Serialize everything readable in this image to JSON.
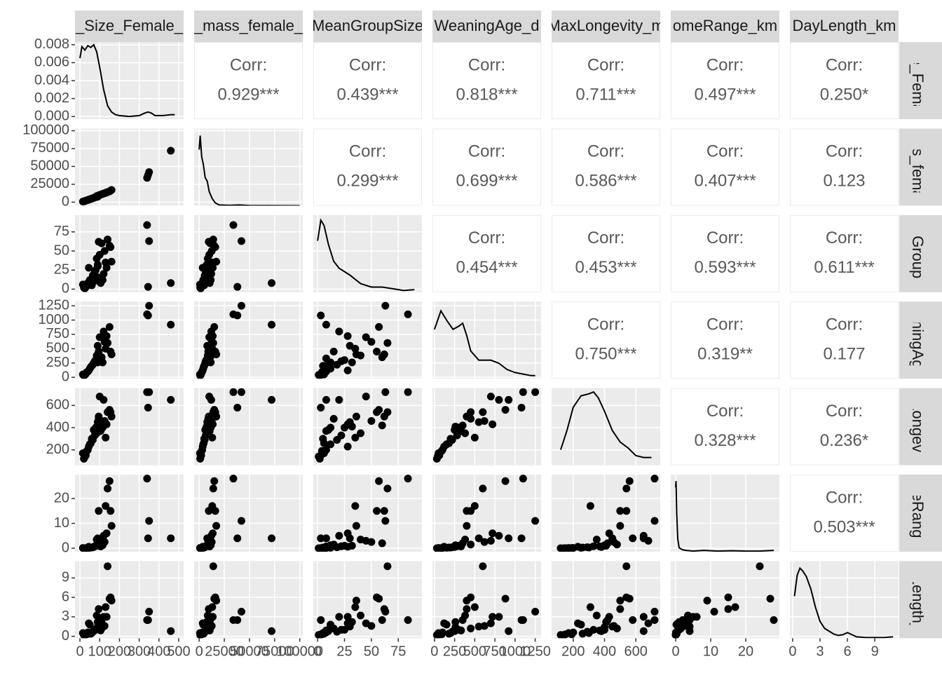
{
  "chart_data": {
    "type": "scatter-matrix",
    "corr_label": "Corr:",
    "variables": [
      {
        "strip": "_Size_Female_",
        "row_strip": "ize_Femal",
        "lim": [
          -25,
          525
        ],
        "ticks": [
          0,
          100,
          200,
          300,
          400,
          500
        ],
        "values": [
          340,
          350,
          345,
          460,
          150,
          140,
          130,
          155,
          160,
          120,
          100,
          90,
          80,
          70,
          60,
          50,
          40,
          30,
          20,
          110,
          95,
          85,
          75,
          65,
          55,
          45,
          35,
          125,
          105,
          115,
          25,
          15,
          135,
          95,
          90
        ]
      },
      {
        "strip": "_mass_female_",
        "row_strip": "ass_femal",
        "lim": [
          -5000,
          103000
        ],
        "ticks": [
          0,
          25000,
          50000,
          75000,
          100000
        ],
        "values": [
          34000,
          42000,
          38000,
          72000,
          15000,
          14000,
          13000,
          16000,
          17000,
          12000,
          10000,
          8000,
          7000,
          6000,
          5000,
          4000,
          3000,
          2000,
          1000,
          11000,
          9000,
          8500,
          6500,
          5500,
          4500,
          3500,
          2500,
          12500,
          10500,
          11500,
          1500,
          800,
          13500,
          9500,
          7500
        ]
      },
      {
        "strip": "MeanGroupSize",
        "row_strip": "anGroupS",
        "lim": [
          -4,
          97
        ],
        "ticks": [
          0,
          25,
          50,
          75
        ],
        "values": [
          84,
          63,
          3,
          8,
          57,
          65,
          35,
          55,
          36,
          20,
          45,
          30,
          25,
          10,
          5,
          12,
          8,
          3,
          2,
          60,
          15,
          40,
          22,
          18,
          6,
          28,
          4,
          50,
          8,
          12,
          1,
          6,
          28,
          62,
          32
        ]
      },
      {
        "strip": "WeaningAge_d",
        "row_strip": "eaningAge",
        "lim": [
          -25,
          1323
        ],
        "ticks": [
          0,
          250,
          500,
          750,
          1000,
          1250
        ],
        "values": [
          1100,
          1250,
          1080,
          920,
          880,
          600,
          500,
          450,
          400,
          800,
          700,
          550,
          300,
          250,
          200,
          150,
          100,
          60,
          30,
          350,
          450,
          380,
          280,
          220,
          180,
          120,
          90,
          620,
          330,
          260,
          40,
          50,
          720,
          400,
          260
        ]
      },
      {
        "strip": "MaxLongevity_m",
        "row_strip": "axLongevity",
        "lim": [
          62,
          756
        ],
        "ticks": [
          200,
          400,
          600
        ],
        "values": [
          720,
          720,
          580,
          650,
          560,
          540,
          310,
          540,
          500,
          650,
          680,
          450,
          400,
          380,
          300,
          250,
          200,
          150,
          120,
          420,
          480,
          350,
          330,
          290,
          260,
          230,
          190,
          460,
          370,
          400,
          140,
          170,
          430,
          500,
          410
        ]
      },
      {
        "strip": "omeRange_km",
        "row_strip": "omeRange_",
        "lim": [
          -1.4,
          29.6
        ],
        "ticks": [
          0,
          10,
          20
        ],
        "values": [
          28,
          11,
          4,
          4,
          27,
          24,
          17,
          15,
          9,
          5,
          3,
          4,
          1,
          0.5,
          0.3,
          0.2,
          0.1,
          0.05,
          0.02,
          2,
          1.5,
          3.5,
          0.8,
          0.4,
          0.3,
          0.6,
          0.1,
          2.5,
          0.7,
          1.2,
          0.02,
          0.1,
          6,
          15,
          1
        ]
      },
      {
        "strip": "DayLength_km",
        "row_strip": "ayLength_k",
        "lim": [
          -0.3,
          11.6
        ],
        "ticks": [
          0,
          3,
          6,
          9
        ],
        "values": [
          2.5,
          3.8,
          2.5,
          0.8,
          5.8,
          10.8,
          4.5,
          6,
          5.5,
          3,
          2,
          1.5,
          1,
          0.8,
          0.5,
          1.8,
          0.6,
          0.3,
          0.2,
          2.5,
          1.2,
          3.2,
          1,
          0.7,
          0.4,
          2,
          0.3,
          1.6,
          0.9,
          1.4,
          0.2,
          0.5,
          3,
          4.2,
          2.2
        ]
      }
    ],
    "diag_yticks": [
      {
        "value": 0,
        "label": "0.000"
      },
      {
        "value": 0.002,
        "label": "0.002"
      },
      {
        "value": 0.004,
        "label": "0.004"
      },
      {
        "value": 0.006,
        "label": "0.006"
      },
      {
        "value": 0.008,
        "label": "0.008"
      }
    ],
    "densities": [
      {
        "ylim": [
          -0.0003,
          0.0083
        ],
        "x": [
          0,
          10,
          25,
          40,
          55,
          70,
          85,
          100,
          120,
          140,
          160,
          180,
          200,
          250,
          300,
          330,
          345,
          360,
          380,
          420,
          460,
          480
        ],
        "y": [
          0.0065,
          0.0078,
          0.0074,
          0.0079,
          0.0077,
          0.008,
          0.0072,
          0.0055,
          0.003,
          0.0012,
          0.0005,
          0.0002,
          0.0001,
          0,
          0.0001,
          0.0004,
          0.0005,
          0.0004,
          0.0001,
          0.0001,
          0.0002,
          0.0002
        ]
      },
      {
        "ylim": [
          0,
          0.00011
        ],
        "x": [
          0,
          1000,
          2500,
          4000,
          6000,
          8000,
          10000,
          13000,
          16000,
          20000,
          30000,
          40000,
          50000,
          70000,
          90000,
          100000
        ],
        "y": [
          8e-05,
          0.0001,
          7e-05,
          6e-05,
          4e-05,
          3.5e-05,
          2e-05,
          1e-05,
          4e-06,
          1e-06,
          5e-07,
          1e-06,
          3e-07,
          2e-07,
          0,
          0
        ]
      },
      {
        "ylim": [
          0,
          0.045
        ],
        "x": [
          0,
          3,
          6,
          10,
          15,
          20,
          30,
          40,
          50,
          60,
          70,
          80,
          90
        ],
        "y": [
          0.03,
          0.042,
          0.039,
          0.028,
          0.018,
          0.014,
          0.01,
          0.005,
          0.003,
          0.003,
          0.002,
          0.001,
          0.0015
        ]
      },
      {
        "ylim": [
          0,
          0.0025
        ],
        "x": [
          0,
          80,
          150,
          230,
          300,
          350,
          400,
          450,
          550,
          700,
          800,
          900,
          1000,
          1100,
          1200,
          1250
        ],
        "y": [
          0.0016,
          0.0022,
          0.0019,
          0.0016,
          0.0017,
          0.0018,
          0.0014,
          0.0009,
          0.0006,
          0.0006,
          0.0005,
          0.0003,
          0.0002,
          0.00015,
          0.0001,
          0.0001
        ]
      },
      {
        "ylim": [
          0,
          0.004
        ],
        "x": [
          120,
          160,
          200,
          250,
          300,
          330,
          360,
          400,
          450,
          500,
          550,
          600,
          650,
          700
        ],
        "y": [
          0.0008,
          0.0018,
          0.003,
          0.0036,
          0.0037,
          0.0038,
          0.0035,
          0.0028,
          0.0018,
          0.0012,
          0.0009,
          0.0005,
          0.0004,
          0.0004
        ]
      },
      {
        "ylim": [
          0,
          1.2
        ],
        "x": [
          0,
          0.1,
          0.3,
          0.6,
          1,
          2,
          3,
          5,
          8,
          12,
          16,
          20,
          24,
          28
        ],
        "y": [
          1.0,
          1.1,
          0.6,
          0.2,
          0.06,
          0.03,
          0.02,
          0.01,
          0.02,
          0.01,
          0.015,
          0.01,
          0.01,
          0.02
        ]
      },
      {
        "ylim": [
          0,
          0.55
        ],
        "x": [
          0.2,
          0.5,
          0.8,
          1.1,
          1.5,
          2,
          2.5,
          3,
          3.5,
          4,
          4.5,
          5,
          5.5,
          6,
          6.5,
          7,
          8,
          9,
          10,
          11
        ],
        "y": [
          0.3,
          0.45,
          0.5,
          0.48,
          0.44,
          0.35,
          0.22,
          0.12,
          0.07,
          0.05,
          0.03,
          0.02,
          0.025,
          0.04,
          0.025,
          0.01,
          0.005,
          0.005,
          0.005,
          0.01
        ]
      }
    ],
    "correlations": [
      [
        {
          "value": 0.929,
          "label": "0.929***"
        },
        {
          "value": 0.439,
          "label": "0.439***"
        },
        {
          "value": 0.818,
          "label": "0.818***"
        },
        {
          "value": 0.711,
          "label": "0.711***"
        },
        {
          "value": 0.497,
          "label": "0.497***"
        },
        {
          "value": 0.25,
          "label": "0.250*"
        }
      ],
      [
        {
          "value": 0.299,
          "label": "0.299***"
        },
        {
          "value": 0.699,
          "label": "0.699***"
        },
        {
          "value": 0.586,
          "label": "0.586***"
        },
        {
          "value": 0.407,
          "label": "0.407***"
        },
        {
          "value": 0.123,
          "label": "0.123"
        }
      ],
      [
        {
          "value": 0.454,
          "label": "0.454***"
        },
        {
          "value": 0.453,
          "label": "0.453***"
        },
        {
          "value": 0.593,
          "label": "0.593***"
        },
        {
          "value": 0.611,
          "label": "0.611***"
        }
      ],
      [
        {
          "value": 0.75,
          "label": "0.750***"
        },
        {
          "value": 0.319,
          "label": "0.319**"
        },
        {
          "value": 0.177,
          "label": "0.177"
        }
      ],
      [
        {
          "value": 0.328,
          "label": "0.328***"
        },
        {
          "value": 0.236,
          "label": "0.236*"
        }
      ],
      [
        {
          "value": 0.503,
          "label": "0.503***"
        }
      ]
    ]
  }
}
